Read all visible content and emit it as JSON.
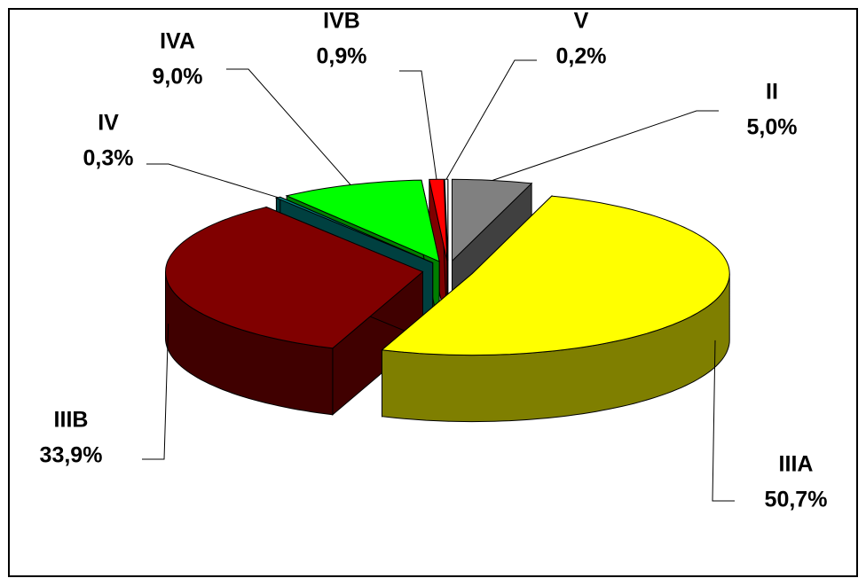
{
  "chart_data": {
    "type": "pie",
    "categories": [
      "II",
      "IIIA",
      "IIIB",
      "IV",
      "IVA",
      "IVB",
      "V"
    ],
    "values": [
      5.0,
      50.7,
      33.9,
      0.3,
      9.0,
      0.9,
      0.2
    ],
    "value_labels": [
      "5,0%",
      "50,7%",
      "33,9%",
      "0,3%",
      "9,0%",
      "0,9%",
      "0,2%"
    ],
    "colors": [
      "#808080",
      "#ffff00",
      "#800000",
      "#008080",
      "#00ff00",
      "#ff0000",
      "#ffffff"
    ]
  }
}
